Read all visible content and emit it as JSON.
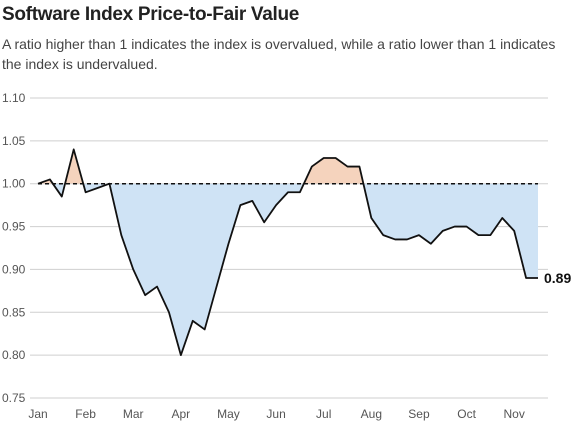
{
  "chart_data": {
    "type": "line",
    "title": "Software Index Price-to-Fair Value",
    "subtitle": "A ratio higher than 1 indicates the index is overvalued, while a ratio lower than 1 indicates the index is undervalued.",
    "categories": [
      "Jan",
      null,
      null,
      null,
      "Feb",
      null,
      null,
      null,
      "Mar",
      null,
      null,
      null,
      "Apr",
      null,
      null,
      null,
      "May",
      null,
      null,
      null,
      "Jun",
      null,
      null,
      null,
      "Jul",
      null,
      null,
      null,
      "Aug",
      null,
      null,
      null,
      "Sep",
      null,
      null,
      null,
      "Oct",
      null,
      null,
      null,
      "Nov",
      null,
      null
    ],
    "values": [
      1.0,
      1.005,
      0.985,
      1.04,
      0.99,
      0.995,
      1.0,
      0.94,
      0.9,
      0.87,
      0.88,
      0.85,
      0.8,
      0.84,
      0.83,
      0.88,
      0.93,
      0.975,
      0.98,
      0.955,
      0.975,
      0.99,
      0.99,
      1.02,
      1.03,
      1.03,
      1.02,
      1.02,
      0.96,
      0.94,
      0.935,
      0.935,
      0.94,
      0.93,
      0.945,
      0.95,
      0.95,
      0.94,
      0.94,
      0.96,
      0.945,
      0.89,
      0.89
    ],
    "color": "#111111",
    "above_color": "#f5d3bd",
    "below_color": "#cfe3f5",
    "reference": 1,
    "ylim": [
      0.75,
      1.1
    ],
    "yticks": [
      {
        "value": 1.1,
        "label": "1.10"
      },
      1.05,
      {
        "value": 1.0,
        "label": "1.00"
      },
      0.95,
      {
        "value": 0.9,
        "label": "0.90"
      },
      0.85,
      {
        "value": 0.8,
        "label": "0.80"
      },
      0.75
    ],
    "grid": true
  }
}
